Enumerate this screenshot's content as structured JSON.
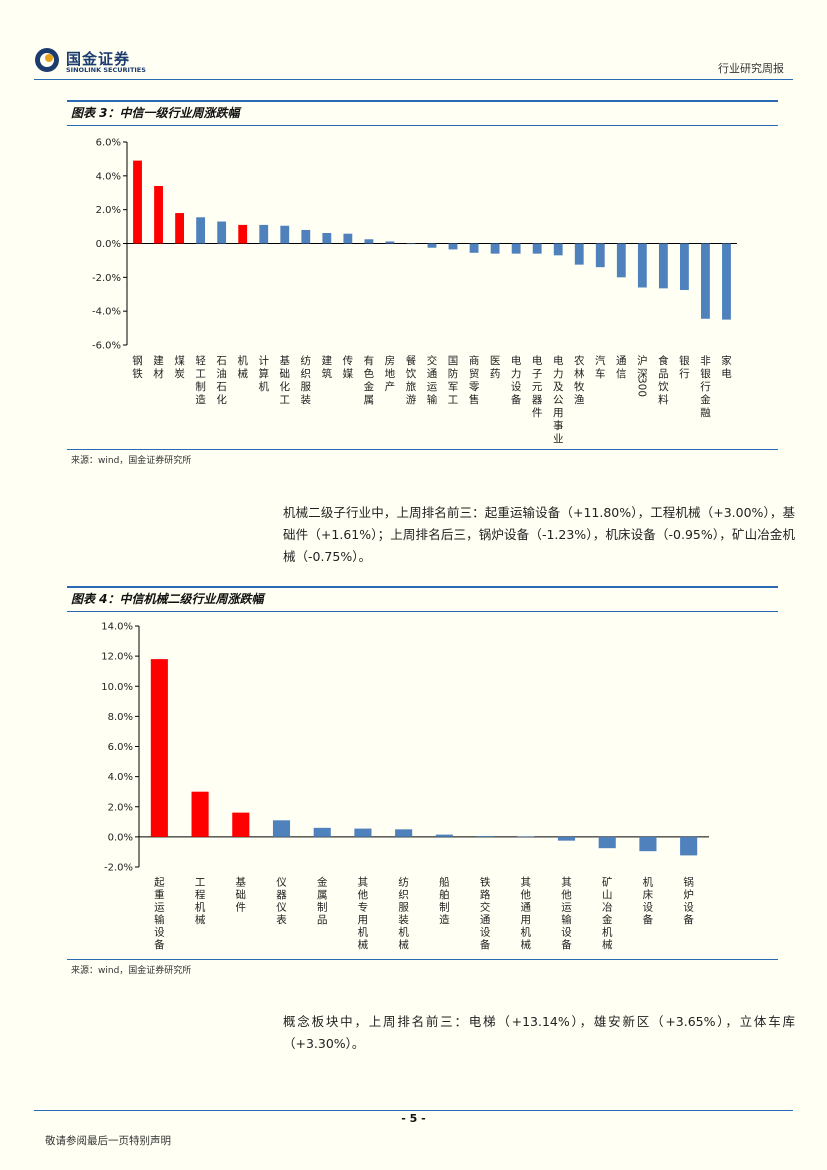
{
  "header": {
    "logo_cn": "国金证券",
    "logo_en": "SINOLINK SECURITIES",
    "report_type": "行业研究周报"
  },
  "figure3": {
    "title": "图表 3：中信一级行业周涨跌幅",
    "source": "来源：wind，国金证券研究所"
  },
  "paragraph1": "机械二级子行业中，上周排名前三：起重运输设备（+11.80%），工程机械（+3.00%），基础件（+1.61%）；上周排名后三，锅炉设备（-1.23%），机床设备（-0.95%），矿山冶金机械（-0.75%）。",
  "figure4": {
    "title": "图表 4：中信机械二级行业周涨跌幅",
    "source": "来源：wind，国金证券研究所"
  },
  "paragraph2": "概念板块中，上周排名前三：电梯（+13.14%），雄安新区（+3.65%），立体车库（+3.30%）。",
  "footer": {
    "page_number": "- 5 -",
    "disclaimer": "敬请参阅最后一页特别声明"
  },
  "colors": {
    "highlight": "#ff0000",
    "bar": "#4f81bd",
    "rule": "#2a6ab5"
  },
  "chart_data": [
    {
      "type": "bar",
      "title": "图表 3：中信一级行业周涨跌幅",
      "ylim": [
        -6,
        6
      ],
      "yticks": [
        "6.0%",
        "4.0%",
        "2.0%",
        "0.0%",
        "-2.0%",
        "-4.0%",
        "-6.0%"
      ],
      "tick_values": [
        6,
        4,
        2,
        0,
        -2,
        -4,
        -6
      ],
      "categories": [
        "钢铁",
        "建材",
        "煤炭",
        "轻工制造",
        "石油石化",
        "机械",
        "计算机",
        "基础化工",
        "纺织服装",
        "建筑",
        "传媒",
        "有色金属",
        "房地产",
        "餐饮旅游",
        "交通运输",
        "国防军工",
        "商贸零售",
        "医药",
        "电力设备",
        "电子元器件",
        "电力及公用事业",
        "农林牧渔",
        "汽车",
        "通信",
        "沪深300",
        "食品饮料",
        "银行",
        "非银行金融",
        "家电"
      ],
      "values": [
        4.9,
        3.4,
        1.8,
        1.55,
        1.3,
        1.1,
        1.1,
        1.05,
        0.8,
        0.62,
        0.58,
        0.25,
        0.12,
        0.0,
        -0.25,
        -0.35,
        -0.55,
        -0.6,
        -0.6,
        -0.6,
        -0.7,
        -1.25,
        -1.4,
        -2.0,
        -2.6,
        -2.65,
        -2.75,
        -4.45,
        -4.5
      ],
      "highlight": [
        0,
        1,
        2,
        5
      ]
    },
    {
      "type": "bar",
      "title": "图表 4：中信机械二级行业周涨跌幅",
      "ylim": [
        -2,
        14
      ],
      "yticks": [
        "14.0%",
        "12.0%",
        "10.0%",
        "8.0%",
        "6.0%",
        "4.0%",
        "2.0%",
        "0.0%",
        "-2.0%"
      ],
      "tick_values": [
        14,
        12,
        10,
        8,
        6,
        4,
        2,
        0,
        -2
      ],
      "categories": [
        "起重运输设备",
        "工程机械",
        "基础件",
        "仪器仪表",
        "金属制品",
        "其他专用机械",
        "纺织服装机械",
        "船舶制造",
        "铁路交通设备",
        "其他通用机械",
        "其他运输设备",
        "矿山冶金机械",
        "机床设备",
        "锅炉设备"
      ],
      "values": [
        11.8,
        3.0,
        1.61,
        1.1,
        0.6,
        0.55,
        0.5,
        0.15,
        0.05,
        0.03,
        -0.25,
        -0.75,
        -0.95,
        -1.23
      ],
      "highlight": [
        0,
        1,
        2
      ]
    }
  ]
}
